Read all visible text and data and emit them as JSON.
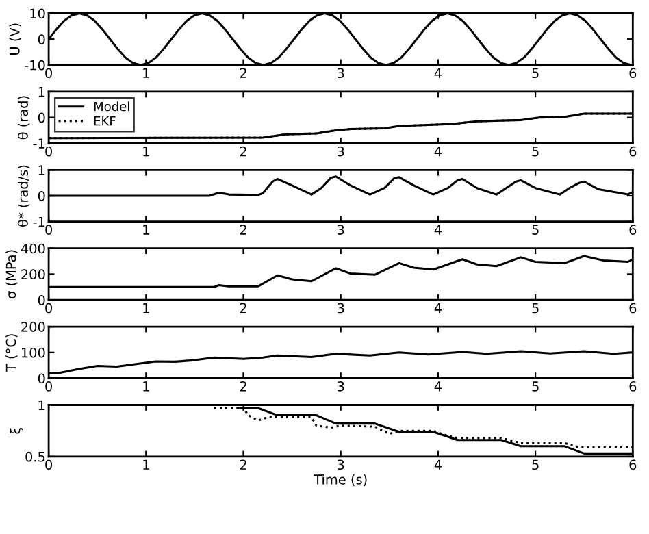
{
  "chart_data": [
    {
      "type": "line",
      "ylabel": "U (V)",
      "xlim": [
        0,
        6
      ],
      "xticks": [
        0,
        1,
        2,
        3,
        4,
        5,
        6
      ],
      "ylim": [
        -10,
        10
      ],
      "yticks": [
        -10,
        0,
        10
      ],
      "grid": false,
      "legend": false,
      "series": [
        {
          "color": "#000000",
          "line_style": "solid",
          "x": [
            0,
            0.079,
            0.158,
            0.236,
            0.315,
            0.394,
            0.473,
            0.551,
            0.63,
            0.709,
            0.788,
            0.866,
            0.945,
            1.024,
            1.103,
            1.181,
            1.26,
            1.339,
            1.418,
            1.496,
            1.575,
            1.654,
            1.733,
            1.811,
            1.89,
            1.969,
            2.048,
            2.126,
            2.205,
            2.284,
            2.363,
            2.441,
            2.52,
            2.599,
            2.678,
            2.756,
            2.835,
            2.914,
            2.993,
            3.071,
            3.15,
            3.229,
            3.308,
            3.386,
            3.465,
            3.544,
            3.623,
            3.701,
            3.78,
            3.859,
            3.938,
            4.016,
            4.095,
            4.174,
            4.253,
            4.331,
            4.41,
            4.489,
            4.568,
            4.646,
            4.725,
            4.804,
            4.883,
            4.961,
            5.04,
            5.119,
            5.198,
            5.276,
            5.355,
            5.434,
            5.513,
            5.591,
            5.67,
            5.749,
            5.828,
            5.906,
            5.985,
            6
          ],
          "values": [
            0,
            3.8,
            7.1,
            9.2,
            10,
            9.2,
            7.1,
            3.8,
            0,
            -3.8,
            -7.1,
            -9.2,
            -10,
            -9.2,
            -7.1,
            -3.8,
            0,
            3.8,
            7.1,
            9.2,
            10,
            9.2,
            7.1,
            3.8,
            0,
            -3.8,
            -7.1,
            -9.2,
            -10,
            -9.2,
            -7.1,
            -3.8,
            0,
            3.8,
            7.1,
            9.2,
            10,
            9.2,
            7.1,
            3.8,
            0,
            -3.8,
            -7.1,
            -9.2,
            -10,
            -9.2,
            -7.1,
            -3.8,
            0,
            3.8,
            7.1,
            9.2,
            10,
            9.2,
            7.1,
            3.8,
            0,
            -3.8,
            -7.1,
            -9.2,
            -10,
            -9.2,
            -7.1,
            -3.8,
            0,
            3.8,
            7.1,
            9.2,
            10,
            9.2,
            7.1,
            3.8,
            0,
            -3.8,
            -7.1,
            -9.2,
            -10,
            -9.9
          ]
        }
      ]
    },
    {
      "type": "line",
      "ylabel": "θ (rad)",
      "xlim": [
        0,
        6
      ],
      "xticks": [
        0,
        1,
        2,
        3,
        4,
        5,
        6
      ],
      "ylim": [
        -1,
        1
      ],
      "yticks": [
        -1,
        0,
        1
      ],
      "grid": false,
      "legend": "top left",
      "series": [
        {
          "name": "Model",
          "color": "#000000",
          "line_style": "solid",
          "x": [
            0,
            2.2,
            2.45,
            2.75,
            2.95,
            3.1,
            3.45,
            3.6,
            3.95,
            4.15,
            4.4,
            4.65,
            4.85,
            5.05,
            5.3,
            5.5,
            6
          ],
          "values": [
            -0.8,
            -0.78,
            -0.65,
            -0.62,
            -0.5,
            -0.45,
            -0.42,
            -0.33,
            -0.28,
            -0.25,
            -0.15,
            -0.12,
            -0.1,
            0.0,
            0.02,
            0.15,
            0.15
          ]
        },
        {
          "name": "EKF",
          "color": "#000000",
          "line_style": "dotted",
          "x": [
            0,
            2.2,
            2.45,
            2.75,
            2.95,
            3.1,
            3.45,
            3.6,
            3.95,
            4.15,
            4.4,
            4.65,
            4.85,
            5.05,
            5.3,
            5.5,
            6
          ],
          "values": [
            -0.8,
            -0.78,
            -0.65,
            -0.62,
            -0.5,
            -0.45,
            -0.42,
            -0.33,
            -0.28,
            -0.25,
            -0.15,
            -0.12,
            -0.1,
            0.0,
            0.02,
            0.15,
            0.15
          ]
        }
      ]
    },
    {
      "type": "line",
      "ylabel": "θ* (rad/s)",
      "xlim": [
        0,
        6
      ],
      "xticks": [
        0,
        1,
        2,
        3,
        4,
        5,
        6
      ],
      "ylim": [
        -1,
        1
      ],
      "yticks": [
        -1,
        0,
        1
      ],
      "grid": false,
      "legend": false,
      "series": [
        {
          "color": "#000000",
          "line_style": "solid",
          "x": [
            0,
            1.65,
            1.75,
            1.85,
            2.15,
            2.2,
            2.3,
            2.35,
            2.5,
            2.7,
            2.8,
            2.9,
            2.95,
            3.1,
            3.3,
            3.45,
            3.55,
            3.6,
            3.75,
            3.95,
            4.1,
            4.2,
            4.25,
            4.4,
            4.6,
            4.7,
            4.8,
            4.85,
            5.0,
            5.25,
            5.35,
            5.45,
            5.5,
            5.65,
            5.95,
            6
          ],
          "values": [
            0,
            0,
            0.12,
            0.05,
            0.03,
            0.1,
            0.55,
            0.65,
            0.4,
            0.05,
            0.3,
            0.7,
            0.75,
            0.4,
            0.05,
            0.3,
            0.68,
            0.72,
            0.4,
            0.05,
            0.3,
            0.6,
            0.65,
            0.3,
            0.05,
            0.3,
            0.55,
            0.6,
            0.3,
            0.05,
            0.3,
            0.5,
            0.55,
            0.25,
            0.05,
            0.15
          ]
        }
      ]
    },
    {
      "type": "line",
      "ylabel": "σ (MPa)",
      "xlim": [
        0,
        6
      ],
      "xticks": [
        0,
        1,
        2,
        3,
        4,
        5,
        6
      ],
      "ylim": [
        0,
        400
      ],
      "yticks": [
        0,
        200,
        400
      ],
      "grid": false,
      "legend": false,
      "series": [
        {
          "color": "#000000",
          "line_style": "solid",
          "x": [
            0,
            1.7,
            1.75,
            1.85,
            2.15,
            2.35,
            2.5,
            2.7,
            2.95,
            3.1,
            3.35,
            3.6,
            3.75,
            3.95,
            4.25,
            4.4,
            4.6,
            4.85,
            5.0,
            5.3,
            5.5,
            5.7,
            5.95,
            6
          ],
          "values": [
            100,
            100,
            115,
            105,
            105,
            190,
            160,
            145,
            245,
            205,
            195,
            285,
            250,
            235,
            315,
            275,
            262,
            330,
            295,
            285,
            340,
            305,
            295,
            315
          ]
        }
      ]
    },
    {
      "type": "line",
      "ylabel": "T (°C)",
      "xlim": [
        0,
        6
      ],
      "xticks": [
        0,
        1,
        2,
        3,
        4,
        5,
        6
      ],
      "ylim": [
        0,
        200
      ],
      "yticks": [
        0,
        100,
        200
      ],
      "grid": false,
      "legend": false,
      "series": [
        {
          "color": "#000000",
          "line_style": "solid",
          "x": [
            0,
            0.1,
            0.3,
            0.5,
            0.7,
            0.9,
            1.1,
            1.3,
            1.5,
            1.7,
            2.0,
            2.2,
            2.35,
            2.7,
            2.95,
            3.3,
            3.6,
            3.9,
            4.25,
            4.5,
            4.85,
            5.15,
            5.5,
            5.8,
            6
          ],
          "values": [
            20,
            20,
            35,
            48,
            45,
            55,
            65,
            64,
            70,
            80,
            75,
            80,
            88,
            82,
            95,
            88,
            100,
            92,
            102,
            95,
            105,
            96,
            105,
            95,
            100
          ]
        }
      ]
    },
    {
      "type": "line",
      "ylabel": "ξ",
      "xlabel": "Time (s)",
      "xlim": [
        0,
        6
      ],
      "xticks": [
        0,
        1,
        2,
        3,
        4,
        5,
        6
      ],
      "ylim": [
        0.5,
        1
      ],
      "yticks": [
        0.5,
        1
      ],
      "grid": false,
      "legend": false,
      "series": [
        {
          "color": "#000000",
          "line_style": "solid",
          "x": [
            1.95,
            2.15,
            2.35,
            2.75,
            2.95,
            3.35,
            3.6,
            3.95,
            4.2,
            4.65,
            4.85,
            5.3,
            5.5,
            6
          ],
          "values": [
            0.97,
            0.97,
            0.9,
            0.9,
            0.82,
            0.82,
            0.74,
            0.74,
            0.66,
            0.66,
            0.6,
            0.6,
            0.53,
            0.53
          ]
        },
        {
          "color": "#000000",
          "line_style": "dotted",
          "x": [
            1.7,
            2.0,
            2.05,
            2.15,
            2.25,
            2.7,
            2.75,
            2.9,
            3.0,
            3.35,
            3.5,
            3.6,
            3.95,
            4.1,
            4.2,
            4.65,
            4.85,
            5.3,
            5.45,
            6
          ],
          "values": [
            0.97,
            0.97,
            0.9,
            0.85,
            0.88,
            0.88,
            0.8,
            0.78,
            0.8,
            0.79,
            0.72,
            0.75,
            0.75,
            0.7,
            0.68,
            0.68,
            0.63,
            0.63,
            0.59,
            0.59
          ]
        }
      ]
    }
  ]
}
